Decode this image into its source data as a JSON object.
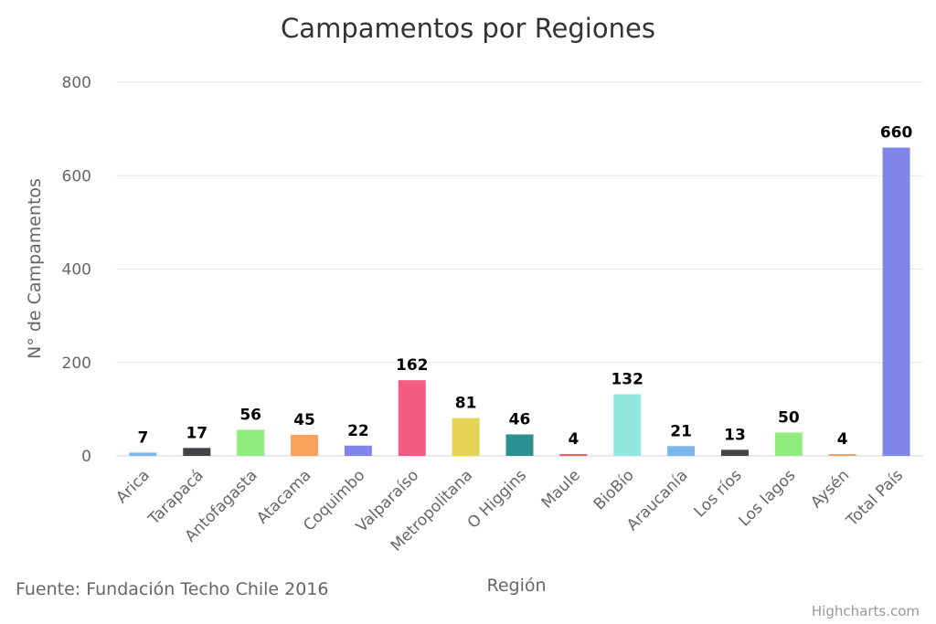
{
  "chart_data": {
    "type": "bar",
    "title": "Campamentos por Regiones",
    "xlabel": "Región",
    "ylabel": "N° de Campamentos",
    "ylim": [
      0,
      800
    ],
    "yticks": [
      0,
      200,
      400,
      600,
      800
    ],
    "grid": true,
    "categories": [
      "Arica",
      "Tarapacá",
      "Antofagasta",
      "Atacama",
      "Coquimbo",
      "Valparaíso",
      "Metropolitana",
      "O Higgins",
      "Maule",
      "BioBío",
      "Araucanía",
      "Los ríos",
      "Los lagos",
      "Aysén",
      "Total País"
    ],
    "values": [
      7,
      17,
      56,
      45,
      22,
      162,
      81,
      46,
      4,
      132,
      21,
      13,
      50,
      4,
      660
    ],
    "colors": [
      "#7cb5ec",
      "#434348",
      "#90ed7d",
      "#f7a35c",
      "#8085e9",
      "#f15c80",
      "#e4d354",
      "#2b908f",
      "#f45b5b",
      "#91e8e1",
      "#7cb5ec",
      "#434348",
      "#90ed7d",
      "#f7a35c",
      "#8085e9"
    ]
  },
  "source": "Fuente: Fundación Techo Chile 2016",
  "credits": "Highcharts.com"
}
